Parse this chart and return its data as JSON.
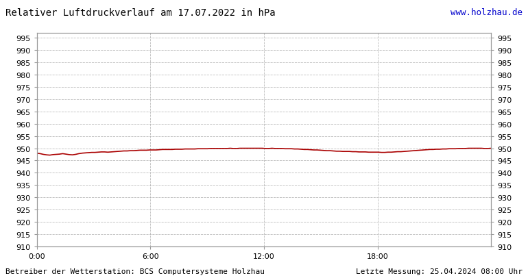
{
  "title": "Relativer Luftdruckverlauf am 17.07.2022 in hPa",
  "url_text": "www.holzhau.de",
  "footer_left": "Betreiber der Wetterstation: BCS Computersysteme Holzhau",
  "footer_right": "Letzte Messung: 25.04.2024 08:00 Uhr",
  "bg_color": "#ffffff",
  "plot_bg_color": "#ffffff",
  "grid_color": "#aaaaaa",
  "line_color": "#aa0000",
  "title_color": "#000000",
  "url_color": "#0000cc",
  "footer_color": "#000000",
  "ylim": [
    910,
    997
  ],
  "yticks": [
    910,
    915,
    920,
    925,
    930,
    935,
    940,
    945,
    950,
    955,
    960,
    965,
    970,
    975,
    980,
    985,
    990,
    995
  ],
  "xtick_labels": [
    "0:00",
    "6:00",
    "12:00",
    "18:00"
  ],
  "xtick_positions": [
    0.0,
    0.25,
    0.5,
    0.75
  ],
  "y_values": [
    948.0,
    947.8,
    947.5,
    947.3,
    947.2,
    947.4,
    947.5,
    947.6,
    947.8,
    947.6,
    947.4,
    947.3,
    947.5,
    947.8,
    948.0,
    948.1,
    948.2,
    948.3,
    948.3,
    948.4,
    948.5,
    948.5,
    948.4,
    948.5,
    948.6,
    948.7,
    948.8,
    948.9,
    948.9,
    949.0,
    949.0,
    949.1,
    949.2,
    949.2,
    949.2,
    949.3,
    949.3,
    949.3,
    949.4,
    949.5,
    949.5,
    949.5,
    949.5,
    949.6,
    949.6,
    949.6,
    949.7,
    949.7,
    949.7,
    949.7,
    949.8,
    949.8,
    949.8,
    949.8,
    949.9,
    949.9,
    949.9,
    949.9,
    949.9,
    949.9,
    950.0,
    949.9,
    949.9,
    950.0,
    950.0,
    950.0,
    950.0,
    950.0,
    950.0,
    950.0,
    950.0,
    949.9,
    949.9,
    950.0,
    949.9,
    949.9,
    949.9,
    949.8,
    949.8,
    949.8,
    949.7,
    949.7,
    949.6,
    949.5,
    949.5,
    949.4,
    949.3,
    949.3,
    949.2,
    949.1,
    949.0,
    949.0,
    948.9,
    948.8,
    948.8,
    948.7,
    948.7,
    948.7,
    948.6,
    948.6,
    948.5,
    948.5,
    948.5,
    948.4,
    948.4,
    948.4,
    948.4,
    948.3,
    948.3,
    948.4,
    948.4,
    948.5,
    948.6,
    948.6,
    948.7,
    948.8,
    948.9,
    949.0,
    949.1,
    949.2,
    949.3,
    949.4,
    949.5,
    949.5,
    949.6,
    949.6,
    949.7,
    949.7,
    949.8,
    949.8,
    949.8,
    949.9,
    949.9,
    949.9,
    950.0,
    950.0,
    950.0,
    950.0,
    950.0,
    949.9,
    949.9,
    950.0
  ]
}
